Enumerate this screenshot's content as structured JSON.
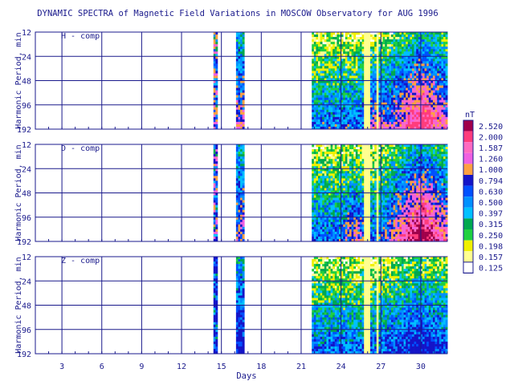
{
  "chart_data": {
    "type": "heatmap",
    "title": "DYNAMIC SPECTRA of Magnetic Field Variations in MOSCOW Observatory for AUG 1996",
    "xlabel": "Days",
    "ylabel": "Harmonic Period, min",
    "x_ticks": [
      "3",
      "6",
      "9",
      "12",
      "15",
      "18",
      "21",
      "24",
      "27",
      "30"
    ],
    "x_tick_values": [
      3,
      6,
      9,
      12,
      15,
      18,
      21,
      24,
      27,
      30
    ],
    "xlim": [
      1,
      32
    ],
    "y_ticks": [
      "12",
      "24",
      "48",
      "96",
      "192"
    ],
    "y_tick_values": [
      12,
      24,
      48,
      96,
      192
    ],
    "y_scale": "log",
    "ylim": [
      12,
      192
    ],
    "grid": true,
    "legend_position": "right",
    "panels": [
      {
        "label": "H - comp"
      },
      {
        "label": "D - comp"
      },
      {
        "label": "Z - comp"
      }
    ],
    "colorbar": {
      "unit": "nT",
      "levels": [
        "2.520",
        "2.000",
        "1.587",
        "1.260",
        "1.000",
        "0.794",
        "0.630",
        "0.500",
        "0.397",
        "0.315",
        "0.250",
        "0.198",
        "0.157",
        "0.125"
      ],
      "colors": [
        "#a0004a",
        "#ff3c7c",
        "#ff6ac0",
        "#f060e0",
        "#ffa040",
        "#1414c8",
        "#0050ff",
        "#0090ff",
        "#00c0ff",
        "#00a850",
        "#20d040",
        "#f0f000",
        "#ffff90",
        "#ffffff"
      ]
    },
    "data_intervals_days": [
      [
        14.4,
        14.6
      ],
      [
        16.1,
        16.6
      ],
      [
        21.8,
        32
      ]
    ],
    "intensity_profile": {
      "H": {
        "level_start": 22,
        "moderate_near": 26.5,
        "peak_near": 30,
        "peak_level": "2.000"
      },
      "D": {
        "level_start": 22,
        "moderate_near": 25,
        "peak_near": 30,
        "peak_level": "2.520"
      },
      "Z": {
        "level_start": 22,
        "peak_near": 30,
        "peak_level": "0.794"
      }
    }
  }
}
